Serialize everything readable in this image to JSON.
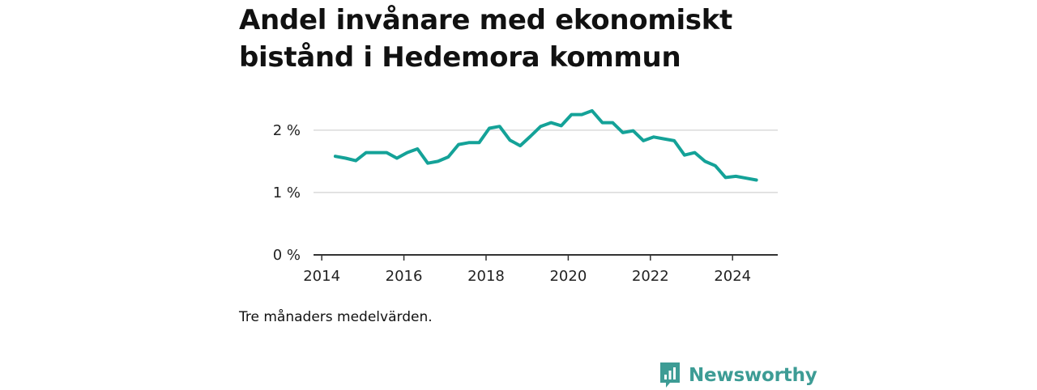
{
  "title": "Andel invånare med ekonomiskt bistånd i Hedemora kommun",
  "note": "Tre månaders medelvärden.",
  "brand": {
    "name": "Newsworthy",
    "icon": "bar-chart-icon",
    "color": "#3d9c95"
  },
  "colors": {
    "line": "#14a298",
    "grid": "#d9d9d9",
    "axis": "#333333"
  },
  "chart_data": {
    "type": "line",
    "title": "Andel invånare med ekonomiskt bistånd i Hedemora kommun",
    "xlabel": "",
    "ylabel": "",
    "xlim": [
      2013.8,
      2025.1
    ],
    "ylim": [
      0,
      2.4
    ],
    "x_ticks": [
      2014,
      2016,
      2018,
      2020,
      2022,
      2024
    ],
    "x_tick_labels": [
      "2014",
      "2016",
      "2018",
      "2020",
      "2022",
      "2024"
    ],
    "y_ticks": [
      0,
      1,
      2
    ],
    "y_tick_labels": [
      "0 %",
      "1 %",
      "2 %"
    ],
    "grid": "horizontal",
    "legend": "none",
    "x": [
      2014.33,
      2014.58,
      2014.83,
      2015.08,
      2015.33,
      2015.58,
      2015.83,
      2016.08,
      2016.33,
      2016.58,
      2016.83,
      2017.08,
      2017.33,
      2017.58,
      2017.83,
      2018.08,
      2018.33,
      2018.58,
      2018.83,
      2019.08,
      2019.33,
      2019.58,
      2019.83,
      2020.08,
      2020.33,
      2020.58,
      2020.83,
      2021.08,
      2021.33,
      2021.58,
      2021.83,
      2022.08,
      2022.33,
      2022.58,
      2022.83,
      2023.08,
      2023.33,
      2023.58,
      2023.83,
      2024.08,
      2024.33,
      2024.58
    ],
    "values": [
      1.58,
      1.55,
      1.51,
      1.64,
      1.64,
      1.64,
      1.55,
      1.64,
      1.7,
      1.47,
      1.5,
      1.57,
      1.77,
      1.8,
      1.8,
      2.03,
      2.06,
      1.84,
      1.75,
      1.9,
      2.06,
      2.12,
      2.07,
      2.25,
      2.25,
      2.31,
      2.12,
      2.12,
      1.96,
      1.99,
      1.83,
      1.89,
      1.86,
      1.83,
      1.6,
      1.64,
      1.5,
      1.43,
      1.24,
      1.26,
      1.23,
      1.2
    ]
  }
}
